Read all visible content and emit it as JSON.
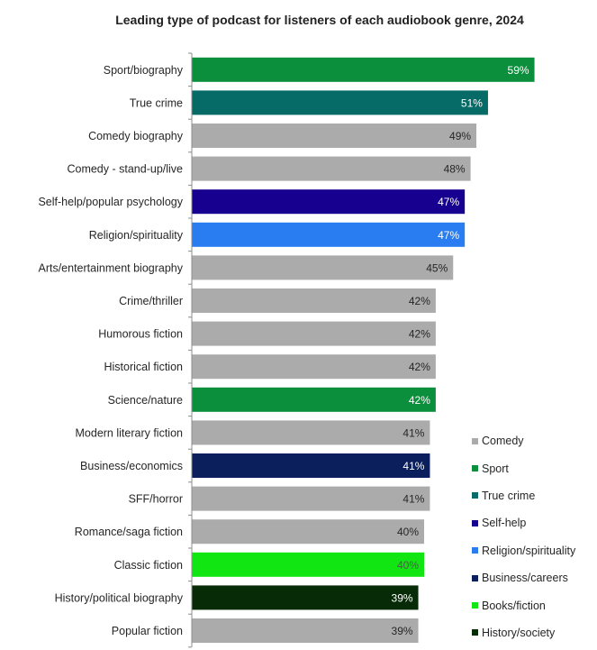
{
  "chart_data": {
    "type": "bar",
    "orientation": "horizontal",
    "title": "Leading type of podcast for listeners of each audiobook genre, 2024",
    "xlabel": "",
    "ylabel": "",
    "xlim": [
      0,
      100
    ],
    "grid": false,
    "legend_position": "bottom-right",
    "categories": [
      "Sport/biography",
      "True crime",
      "Comedy biography",
      "Comedy - stand-up/live",
      "Self-help/popular psychology",
      "Religion/spirituality",
      "Arts/entertainment biography",
      "Crime/thriller",
      "Humorous fiction",
      "Historical fiction",
      "Science/nature",
      "Modern literary fiction",
      "Business/economics",
      "SFF/horror",
      "Romance/saga fiction",
      "Classic fiction",
      "History/political biography",
      "Popular fiction"
    ],
    "values": [
      59,
      51,
      49,
      48,
      47,
      47,
      45,
      42,
      42,
      42,
      42,
      41,
      41,
      41,
      40,
      40,
      39,
      39
    ],
    "value_labels": [
      "59%",
      "51%",
      "49%",
      "48%",
      "47%",
      "47%",
      "45%",
      "42%",
      "42%",
      "42%",
      "42%",
      "41%",
      "41%",
      "41%",
      "40%",
      "40%",
      "39%",
      "39%"
    ],
    "bar_types": [
      "Sport",
      "True crime",
      "Comedy",
      "Comedy",
      "Self-help",
      "Religion/spirituality",
      "Comedy",
      "Comedy",
      "Comedy",
      "Comedy",
      "Sport",
      "Comedy",
      "Business/careers",
      "Comedy",
      "Comedy",
      "Books/fiction",
      "History/society",
      "Comedy"
    ],
    "legend": [
      {
        "name": "Comedy",
        "color": "#ababab",
        "label_color": "#262626"
      },
      {
        "name": "Sport",
        "color": "#0b8f3c",
        "label_color": "#ffffff"
      },
      {
        "name": "True crime",
        "color": "#066a66",
        "label_color": "#ffffff"
      },
      {
        "name": "Self-help",
        "color": "#17008f",
        "label_color": "#ffffff"
      },
      {
        "name": "Religion/spirituality",
        "color": "#2a7df0",
        "label_color": "#ffffff"
      },
      {
        "name": "Business/careers",
        "color": "#0a1f5c",
        "label_color": "#ffffff"
      },
      {
        "name": "Books/fiction",
        "color": "#12e612",
        "label_color": "#555555"
      },
      {
        "name": "History/society",
        "color": "#062b06",
        "label_color": "#ffffff"
      }
    ]
  }
}
